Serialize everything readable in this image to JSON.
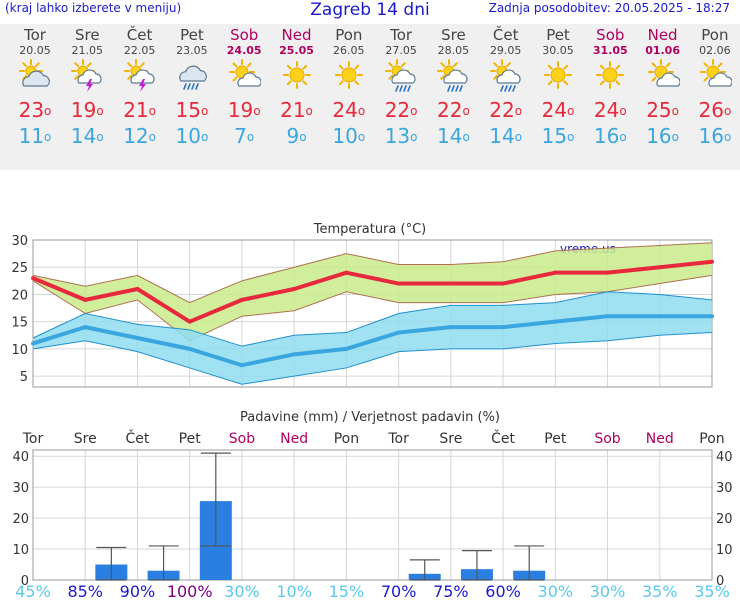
{
  "header": {
    "note": "(kraj lahko izberete v meniju)",
    "title": "Zagreb 14 dni",
    "updated": "Zadnja posodobitev: 20.05.2025 - 18:27"
  },
  "days": [
    {
      "name": "Tor",
      "date": "20.05",
      "icon": "cloudy-sun-icon",
      "tmax": "23",
      "tmin": "11",
      "weekend": false
    },
    {
      "name": "Sre",
      "date": "21.05",
      "icon": "sun-cloud-thunder-icon",
      "tmax": "19",
      "tmin": "14",
      "weekend": false
    },
    {
      "name": "Čet",
      "date": "22.05",
      "icon": "sun-cloud-thunder-icon",
      "tmax": "21",
      "tmin": "12",
      "weekend": false
    },
    {
      "name": "Pet",
      "date": "23.05",
      "icon": "cloud-rain-icon",
      "tmax": "15",
      "tmin": "10",
      "weekend": false
    },
    {
      "name": "Sob",
      "date": "24.05",
      "icon": "sun-cloud-icon",
      "tmax": "19",
      "tmin": "7",
      "weekend": true
    },
    {
      "name": "Ned",
      "date": "25.05",
      "icon": "sun-icon",
      "tmax": "21",
      "tmin": "9",
      "weekend": true
    },
    {
      "name": "Pon",
      "date": "26.05",
      "icon": "sun-icon",
      "tmax": "24",
      "tmin": "10",
      "weekend": false
    },
    {
      "name": "Tor",
      "date": "27.05",
      "icon": "sun-cloud-rain-icon",
      "tmax": "22",
      "tmin": "13",
      "weekend": false
    },
    {
      "name": "Sre",
      "date": "28.05",
      "icon": "sun-cloud-rain-icon",
      "tmax": "22",
      "tmin": "14",
      "weekend": false
    },
    {
      "name": "Čet",
      "date": "29.05",
      "icon": "sun-cloud-rain-icon",
      "tmax": "22",
      "tmin": "14",
      "weekend": false
    },
    {
      "name": "Pet",
      "date": "30.05",
      "icon": "sun-icon",
      "tmax": "24",
      "tmin": "15",
      "weekend": false
    },
    {
      "name": "Sob",
      "date": "31.05",
      "icon": "sun-icon",
      "tmax": "24",
      "tmin": "16",
      "weekend": true
    },
    {
      "name": "Ned",
      "date": "01.06",
      "icon": "sun-cloud-icon",
      "tmax": "25",
      "tmin": "16",
      "weekend": true
    },
    {
      "name": "Pon",
      "date": "02.06",
      "icon": "sun-cloud-icon",
      "tmax": "26",
      "tmin": "16",
      "weekend": false
    }
  ],
  "degree_symbol": "o",
  "colors": {
    "max": "#e8283c",
    "min": "#3aa6e0",
    "weekend": "#b0005f",
    "title": "#1a1acc",
    "max_band": "#c8eb8a",
    "min_band": "#8fdcf0",
    "bar": "#2a7fe0",
    "prob_low": "#5bc8ee",
    "prob_mid": "#1a1acc",
    "prob_high": "#7a0080"
  },
  "chart_data": [
    {
      "type": "line",
      "title": "Temperatura (°C)",
      "watermark": "vreme.us",
      "x": [
        1,
        2,
        3,
        4,
        5,
        6,
        7,
        8,
        9,
        10,
        11,
        12,
        13,
        14
      ],
      "ylim": [
        3,
        30
      ],
      "yticks": [
        5,
        10,
        15,
        20,
        25,
        30
      ],
      "grid": true,
      "series": [
        {
          "values": [
            23,
            19,
            21,
            15,
            19,
            21,
            24,
            22,
            22,
            22,
            24,
            24,
            25,
            26
          ],
          "band_low": [
            22.5,
            16.5,
            19,
            11.5,
            16,
            17,
            20.5,
            18.5,
            18.5,
            18.5,
            20,
            20.5,
            22,
            23.5
          ],
          "band_high": [
            23.5,
            21.5,
            23.5,
            18.5,
            22.5,
            25,
            27.5,
            25.5,
            25.5,
            26,
            28,
            28.5,
            29,
            29.5
          ]
        },
        {
          "values": [
            11,
            14,
            12,
            10,
            7,
            9,
            10,
            13,
            14,
            14,
            15,
            16,
            16,
            16
          ],
          "band_low": [
            10,
            11.5,
            9.5,
            6.5,
            3.5,
            5,
            6.5,
            9.5,
            10,
            10,
            11,
            11.5,
            12.5,
            13
          ],
          "band_high": [
            12,
            16.5,
            14.5,
            13.5,
            10.5,
            12.5,
            13,
            16.5,
            18,
            18,
            18.5,
            20.5,
            20,
            19
          ]
        }
      ]
    },
    {
      "type": "bar",
      "title": "Padavine (mm) / Verjetnost padavin (%)",
      "categories": [
        "Tor",
        "Sre",
        "Čet",
        "Pet",
        "Sob",
        "Ned",
        "Pon",
        "Tor",
        "Sre",
        "Čet",
        "Pet",
        "Sob",
        "Ned",
        "Pon"
      ],
      "weekend": [
        false,
        false,
        false,
        false,
        true,
        true,
        false,
        false,
        false,
        false,
        false,
        true,
        true,
        false
      ],
      "ylim": [
        0,
        42
      ],
      "yticks": [
        0,
        10,
        20,
        30,
        40
      ],
      "grid": true,
      "values": [
        0,
        5,
        3,
        25.5,
        0,
        0,
        0,
        2,
        3.5,
        3,
        0,
        0,
        0,
        0
      ],
      "err_low": [
        null,
        0,
        0,
        11,
        null,
        null,
        null,
        0,
        0,
        0,
        null,
        null,
        null,
        null
      ],
      "err_high": [
        null,
        10.5,
        11,
        41,
        null,
        null,
        null,
        6.5,
        9.5,
        11,
        null,
        null,
        null,
        null
      ],
      "probability": [
        "45%",
        "85%",
        "90%",
        "100%",
        "30%",
        "10%",
        "15%",
        "70%",
        "75%",
        "60%",
        "30%",
        "30%",
        "35%",
        "35%"
      ],
      "probability_level": [
        "low",
        "mid",
        "mid",
        "high",
        "low",
        "low",
        "low",
        "mid",
        "mid",
        "mid",
        "low",
        "low",
        "low",
        "low"
      ]
    }
  ]
}
